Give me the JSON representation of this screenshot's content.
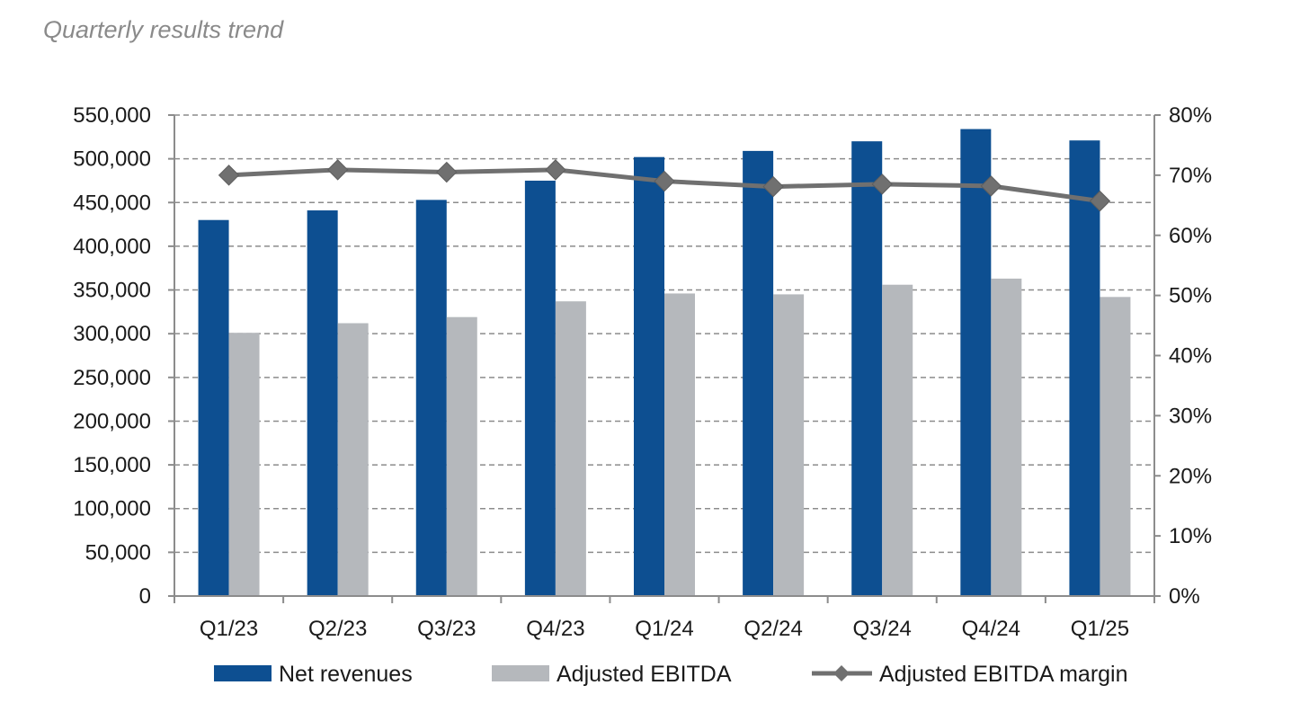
{
  "page": {
    "title": "Quarterly results trend"
  },
  "chart_data": {
    "type": "bar",
    "title": "Quarterly results trend",
    "categories": [
      "Q1/23",
      "Q2/23",
      "Q3/23",
      "Q4/23",
      "Q1/24",
      "Q2/24",
      "Q3/24",
      "Q4/24",
      "Q1/25"
    ],
    "series": [
      {
        "name": "Net revenues",
        "type": "bar",
        "axis": "left",
        "color": "#0d4f91",
        "values": [
          430000,
          441000,
          453000,
          475000,
          502000,
          509000,
          520000,
          534000,
          521000
        ]
      },
      {
        "name": "Adjusted EBITDA",
        "type": "bar",
        "axis": "left",
        "color": "#b5b8bc",
        "values": [
          301000,
          312000,
          319000,
          337000,
          346000,
          345000,
          356000,
          363000,
          342000
        ]
      },
      {
        "name": "Adjusted EBITDA margin",
        "type": "line",
        "axis": "right",
        "color": "#707070",
        "values": [
          0.7,
          0.709,
          0.705,
          0.709,
          0.69,
          0.681,
          0.685,
          0.682,
          0.657
        ]
      }
    ],
    "y_left": {
      "min": 0,
      "max": 550000,
      "step": 50000,
      "ticks": [
        "0",
        "50,000",
        "100,000",
        "150,000",
        "200,000",
        "250,000",
        "300,000",
        "350,000",
        "400,000",
        "450,000",
        "500,000",
        "550,000"
      ]
    },
    "y_right": {
      "min": 0,
      "max": 0.8,
      "step": 0.1,
      "ticks": [
        "0%",
        "10%",
        "20%",
        "30%",
        "40%",
        "50%",
        "60%",
        "70%",
        "80%"
      ]
    },
    "grid": true,
    "legend_position": "bottom"
  }
}
